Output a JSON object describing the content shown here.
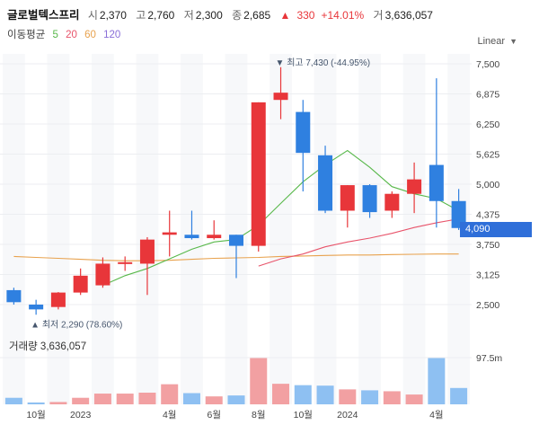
{
  "header": {
    "name": "글로벌텍스프리",
    "open_label": "시",
    "open": "2,370",
    "high_label": "고",
    "high": "2,760",
    "low_label": "저",
    "low": "2,300",
    "close_label": "종",
    "close": "2,685",
    "change_arrow": "▲",
    "change": "330",
    "change_pct": "+14.01%",
    "volume_label": "거",
    "volume": "3,636,057"
  },
  "ma": {
    "label": "이동평균",
    "p5": "5",
    "p20": "20",
    "p60": "60",
    "p120": "120",
    "colors": {
      "p5": "#58b84a",
      "p20": "#e8536a",
      "p60": "#e8a24e",
      "p120": "#8a6fd8"
    }
  },
  "scale_label": "Linear",
  "current_price": "4,090",
  "annotations": {
    "high": "▼ 최고 7,430 (-44.95%)",
    "low": "▲ 최저 2,290 (78.60%)"
  },
  "volume_label": "거래량 3,636,057",
  "volume_axis_label": "97.5m",
  "colors": {
    "up": "#e8363a",
    "down": "#2f80e0",
    "up_vol": "#f2a0a2",
    "down_vol": "#8ec0f2"
  },
  "chart_data": {
    "type": "candlestick",
    "y_ticks": [
      7500,
      6875,
      6250,
      5625,
      5000,
      4375,
      3750,
      3125,
      2500
    ],
    "y_tick_labels": [
      "7,500",
      "6,875",
      "6,250",
      "5,625",
      "5,000",
      "4,375",
      "3,750",
      "3,125",
      "2,500"
    ],
    "x_labels": [
      "10월",
      "2023",
      "4월",
      "6월",
      "8월",
      "10월",
      "2024",
      "4월"
    ],
    "candles": [
      {
        "o": 2800,
        "c": 2550,
        "h": 2850,
        "l": 2500
      },
      {
        "o": 2500,
        "c": 2400,
        "h": 2600,
        "l": 2290
      },
      {
        "o": 2450,
        "c": 2750,
        "h": 2760,
        "l": 2400
      },
      {
        "o": 2750,
        "c": 3100,
        "h": 3250,
        "l": 2700
      },
      {
        "o": 2900,
        "c": 3350,
        "h": 3480,
        "l": 2850
      },
      {
        "o": 3350,
        "c": 3380,
        "h": 3500,
        "l": 3200
      },
      {
        "o": 3350,
        "c": 3850,
        "h": 3900,
        "l": 2700
      },
      {
        "o": 3950,
        "c": 4000,
        "h": 4450,
        "l": 3500
      },
      {
        "o": 3950,
        "c": 3880,
        "h": 4450,
        "l": 3850
      },
      {
        "o": 3880,
        "c": 3950,
        "h": 4250,
        "l": 3850
      },
      {
        "o": 3950,
        "c": 3720,
        "h": 3950,
        "l": 3050
      },
      {
        "o": 3720,
        "c": 6700,
        "h": 6700,
        "l": 3600
      },
      {
        "o": 6750,
        "c": 6900,
        "h": 7430,
        "l": 6350
      },
      {
        "o": 6500,
        "c": 5650,
        "h": 6750,
        "l": 4850
      },
      {
        "o": 5600,
        "c": 4450,
        "h": 5800,
        "l": 4400
      },
      {
        "o": 4450,
        "c": 4980,
        "h": 4980,
        "l": 4100
      },
      {
        "o": 4980,
        "c": 4420,
        "h": 5000,
        "l": 4300
      },
      {
        "o": 4450,
        "c": 4800,
        "h": 4850,
        "l": 4300
      },
      {
        "o": 4800,
        "c": 5100,
        "h": 5450,
        "l": 4400
      },
      {
        "o": 5400,
        "c": 4650,
        "h": 7200,
        "l": 4100
      },
      {
        "o": 4650,
        "c": 4090,
        "h": 4900,
        "l": 4050
      }
    ],
    "volumes": [
      14,
      4,
      5,
      14,
      23,
      23,
      25,
      43,
      24,
      17,
      19,
      100,
      44,
      41,
      40,
      32,
      30,
      28,
      21,
      100,
      35
    ],
    "ma5": [
      null,
      null,
      null,
      null,
      2900,
      3100,
      3250,
      3450,
      3650,
      3800,
      3850,
      4150,
      4600,
      5050,
      5400,
      5700,
      5350,
      4950,
      4800,
      4700,
      4450
    ],
    "ma20": [
      null,
      null,
      null,
      null,
      null,
      null,
      null,
      null,
      null,
      null,
      null,
      3300,
      3450,
      3550,
      3700,
      3800,
      3880,
      3980,
      4100,
      4200,
      4280
    ],
    "ma60": [
      3500,
      3480,
      3460,
      3440,
      3420,
      3410,
      3410,
      3420,
      3440,
      3460,
      3470,
      3480,
      3500,
      3510,
      3520,
      3530,
      3530,
      3540,
      3545,
      3550,
      3550
    ]
  }
}
